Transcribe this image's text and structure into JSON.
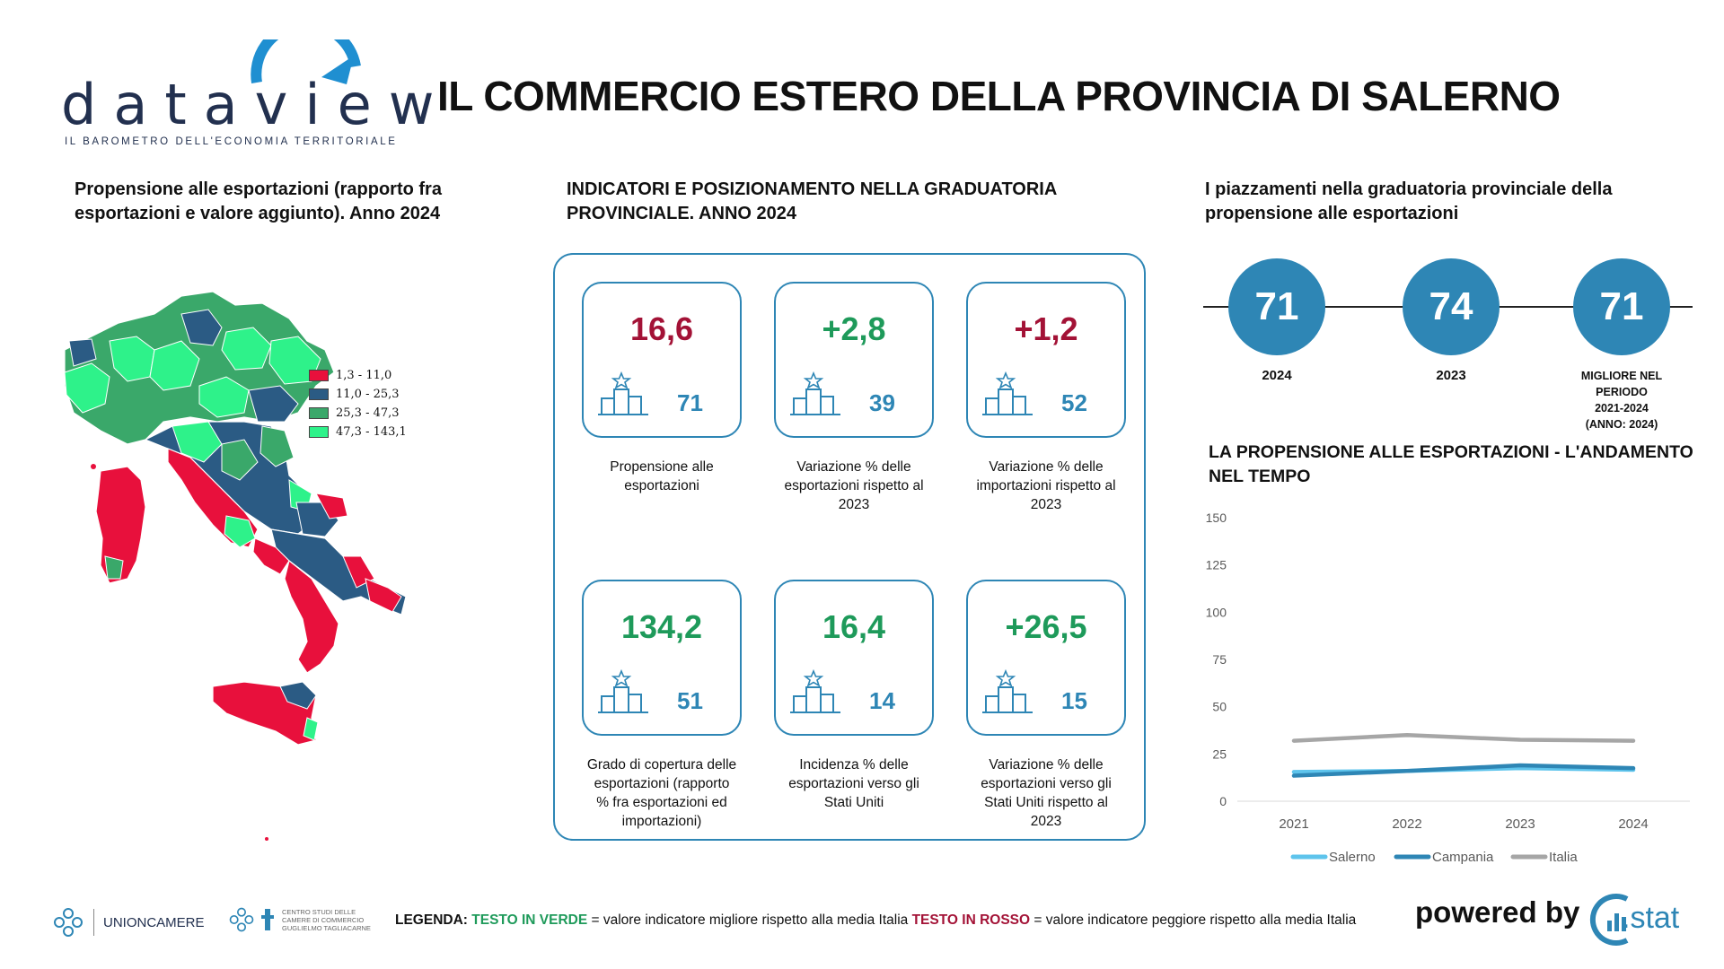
{
  "header": {
    "logo_word": "dataview",
    "logo_tagline": "IL BAROMETRO DELL'ECONOMIA TERRITORIALE",
    "title": "IL COMMERCIO ESTERO DELLA PROVINCIA DI SALERNO"
  },
  "map_section": {
    "title_line1": "Propensione alle esportazioni (rapporto fra",
    "title_line2": "esportazioni e valore aggiunto). Anno 2024",
    "legend": [
      {
        "label": "1,3 - 11,0",
        "color": "#e8103c"
      },
      {
        "label": "11,0 - 25,3",
        "color": "#2b5b84"
      },
      {
        "label": "25,3 - 47,3",
        "color": "#3aa86a"
      },
      {
        "label": "47,3 - 143,1",
        "color": "#2ef28a"
      }
    ]
  },
  "indicators_section": {
    "title_line1": "INDICATORI E POSIZIONAMENTO NELLA GRADUATORIA",
    "title_line2": "PROVINCIALE. ANNO 2024",
    "cards": [
      {
        "value": "16,6",
        "rank": "71",
        "tone": "red",
        "desc": [
          "Propensione alle",
          "esportazioni"
        ]
      },
      {
        "value": "+2,8",
        "rank": "39",
        "tone": "green",
        "desc": [
          "Variazione % delle",
          "esportazioni rispetto al",
          "2023"
        ]
      },
      {
        "value": "+1,2",
        "rank": "52",
        "tone": "red",
        "desc": [
          "Variazione % delle",
          "importazioni rispetto al",
          "2023"
        ]
      },
      {
        "value": "134,2",
        "rank": "51",
        "tone": "green",
        "desc": [
          "Grado di copertura delle",
          "esportazioni (rapporto",
          "% fra esportazioni ed",
          "importazioni)"
        ]
      },
      {
        "value": "16,4",
        "rank": "14",
        "tone": "green",
        "desc": [
          "Incidenza % delle",
          "esportazioni verso gli",
          "Stati Uniti"
        ]
      },
      {
        "value": "+26,5",
        "rank": "15",
        "tone": "green",
        "desc": [
          "Variazione % delle",
          "esportazioni verso gli",
          "Stati Uniti rispetto al",
          "2023"
        ]
      }
    ]
  },
  "rankings_section": {
    "title_line1": "I piazzamenti nella graduatoria provinciale della",
    "title_line2": "propensione alle esportazioni",
    "items": [
      {
        "value": "71",
        "label": [
          "2024"
        ]
      },
      {
        "value": "74",
        "label": [
          "2023"
        ]
      },
      {
        "value": "71",
        "label": [
          "MIGLIORE NEL",
          "PERIODO",
          "2021-2024",
          "(ANNO: 2024)"
        ]
      }
    ]
  },
  "trend_section": {
    "title_line1": "LA PROPENSIONE ALLE ESPORTAZIONI - L'ANDAMENTO",
    "title_line2": "NEL TEMPO"
  },
  "chart_data": {
    "type": "line",
    "title": "",
    "xlabel": "",
    "ylabel": "",
    "x": [
      "2021",
      "2022",
      "2023",
      "2024"
    ],
    "ylim": [
      0,
      150
    ],
    "yticks": [
      0,
      25,
      50,
      75,
      100,
      125,
      150
    ],
    "grid": false,
    "legend_position": "bottom",
    "series": [
      {
        "name": "Salerno",
        "values": [
          15.5,
          16.0,
          17.5,
          16.6
        ],
        "color": "#5ec4ec"
      },
      {
        "name": "Campania",
        "values": [
          13.5,
          16.0,
          19.0,
          17.5
        ],
        "color": "#2e86b5"
      },
      {
        "name": "Italia",
        "values": [
          32.0,
          35.0,
          32.5,
          32.0
        ],
        "color": "#a6a6a6"
      }
    ]
  },
  "footer": {
    "unioncamere": "UNIONCAMERE",
    "centro_studi": [
      "CENTRO STUDI DELLE",
      "CAMERE DI COMMERCIO",
      "GUGLIELMO TAGLIACARNE"
    ],
    "legend_label": "LEGENDA:",
    "green_text": "TESTO IN VERDE",
    "green_desc": " = valore indicatore migliore rispetto alla media Italia ",
    "red_text": "TESTO IN ROSSO",
    "red_desc": " = valore indicatore peggiore rispetto alla media Italia",
    "powered_by": "powered by",
    "stat_logo": ".stat"
  }
}
